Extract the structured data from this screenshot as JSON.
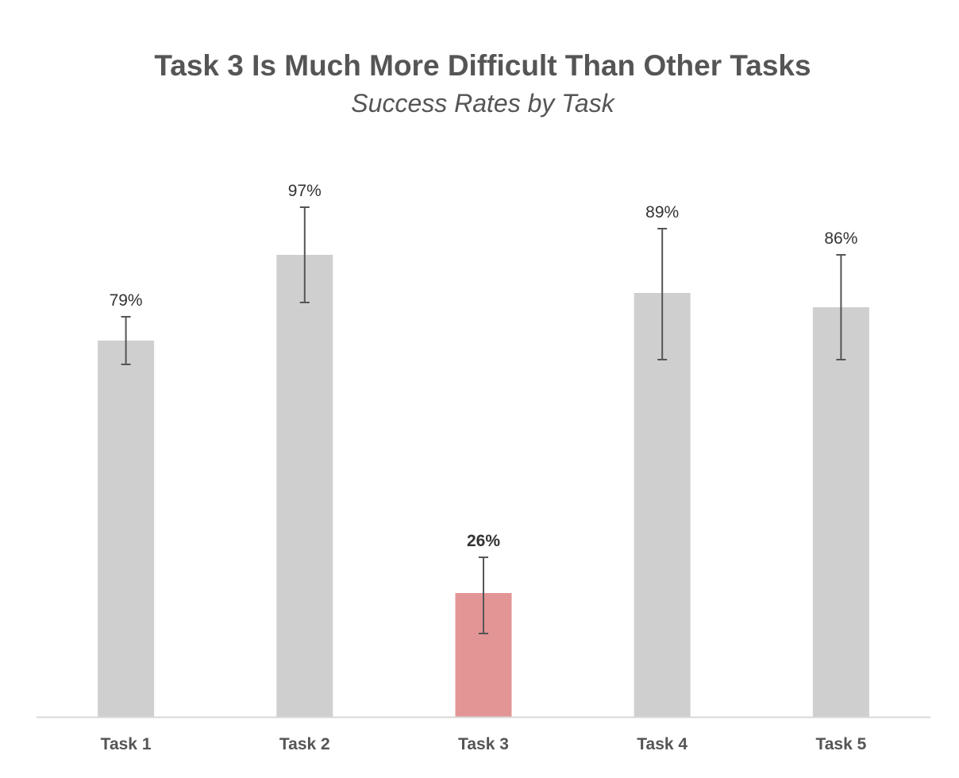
{
  "chart_data": {
    "type": "bar",
    "title": "Task 3 Is Much More Difficult Than Other Tasks",
    "subtitle": "Success Rates by Task",
    "xlabel": "",
    "ylabel": "",
    "categories": [
      "Task 1",
      "Task 2",
      "Task 3",
      "Task 4",
      "Task 5"
    ],
    "values": [
      79,
      97,
      26,
      89,
      86
    ],
    "value_labels": [
      "79%",
      "97%",
      "26%",
      "89%",
      "86%"
    ],
    "error_bars": [
      {
        "low": 74,
        "high": 84
      },
      {
        "low": 87,
        "high": 107
      },
      {
        "low": 17.5,
        "high": 33.5
      },
      {
        "low": 75,
        "high": 102.5
      },
      {
        "low": 75,
        "high": 97
      }
    ],
    "ylim": [
      0,
      120
    ],
    "grid": false,
    "legend": "none",
    "highlight_index": 2,
    "colors": {
      "bar": "#d0cfcf",
      "highlight": "#e39595",
      "error_bar": "#555555",
      "axis": "#d8d8d8",
      "text": "#555555"
    }
  }
}
